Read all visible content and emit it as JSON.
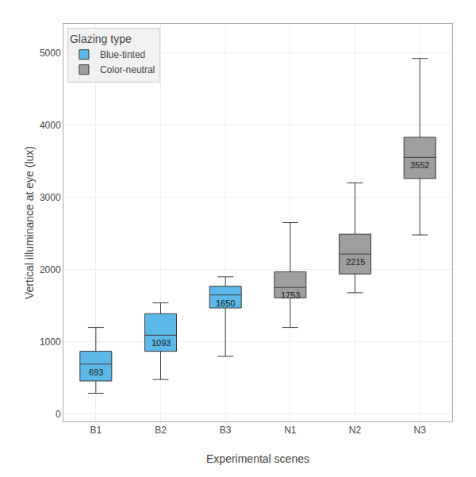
{
  "chart_data": {
    "type": "box",
    "xlabel": "Experimental scenes",
    "ylabel": "Vertical illuminance at eye (lux)",
    "categories": [
      "B1",
      "B2",
      "B3",
      "N1",
      "N2",
      "N3"
    ],
    "ylim": [
      -100,
      5400
    ],
    "yticks": [
      0,
      1000,
      2000,
      3000,
      4000,
      5000
    ],
    "grid": true,
    "legend": "upper left",
    "legend_title": "Glazing type",
    "data_labels": true,
    "series": [
      {
        "name": "Blue-tinted",
        "color": "#5BB8E8",
        "categories": [
          "B1",
          "B2",
          "B3"
        ],
        "median": [
          693,
          1093,
          1650
        ],
        "q1": [
          460,
          870,
          1470
        ],
        "q3": [
          870,
          1390,
          1770
        ],
        "whisker_low": [
          290,
          480,
          800
        ],
        "whisker_high": [
          1200,
          1540,
          1900
        ]
      },
      {
        "name": "Color-neutral",
        "color": "#9E9E9E",
        "categories": [
          "N1",
          "N2",
          "N3"
        ],
        "median": [
          1753,
          2215,
          3552
        ],
        "q1": [
          1610,
          1940,
          3260
        ],
        "q3": [
          1970,
          2490,
          3830
        ],
        "whisker_low": [
          1200,
          1680,
          2480
        ],
        "whisker_high": [
          2650,
          3200,
          4920
        ]
      }
    ]
  }
}
